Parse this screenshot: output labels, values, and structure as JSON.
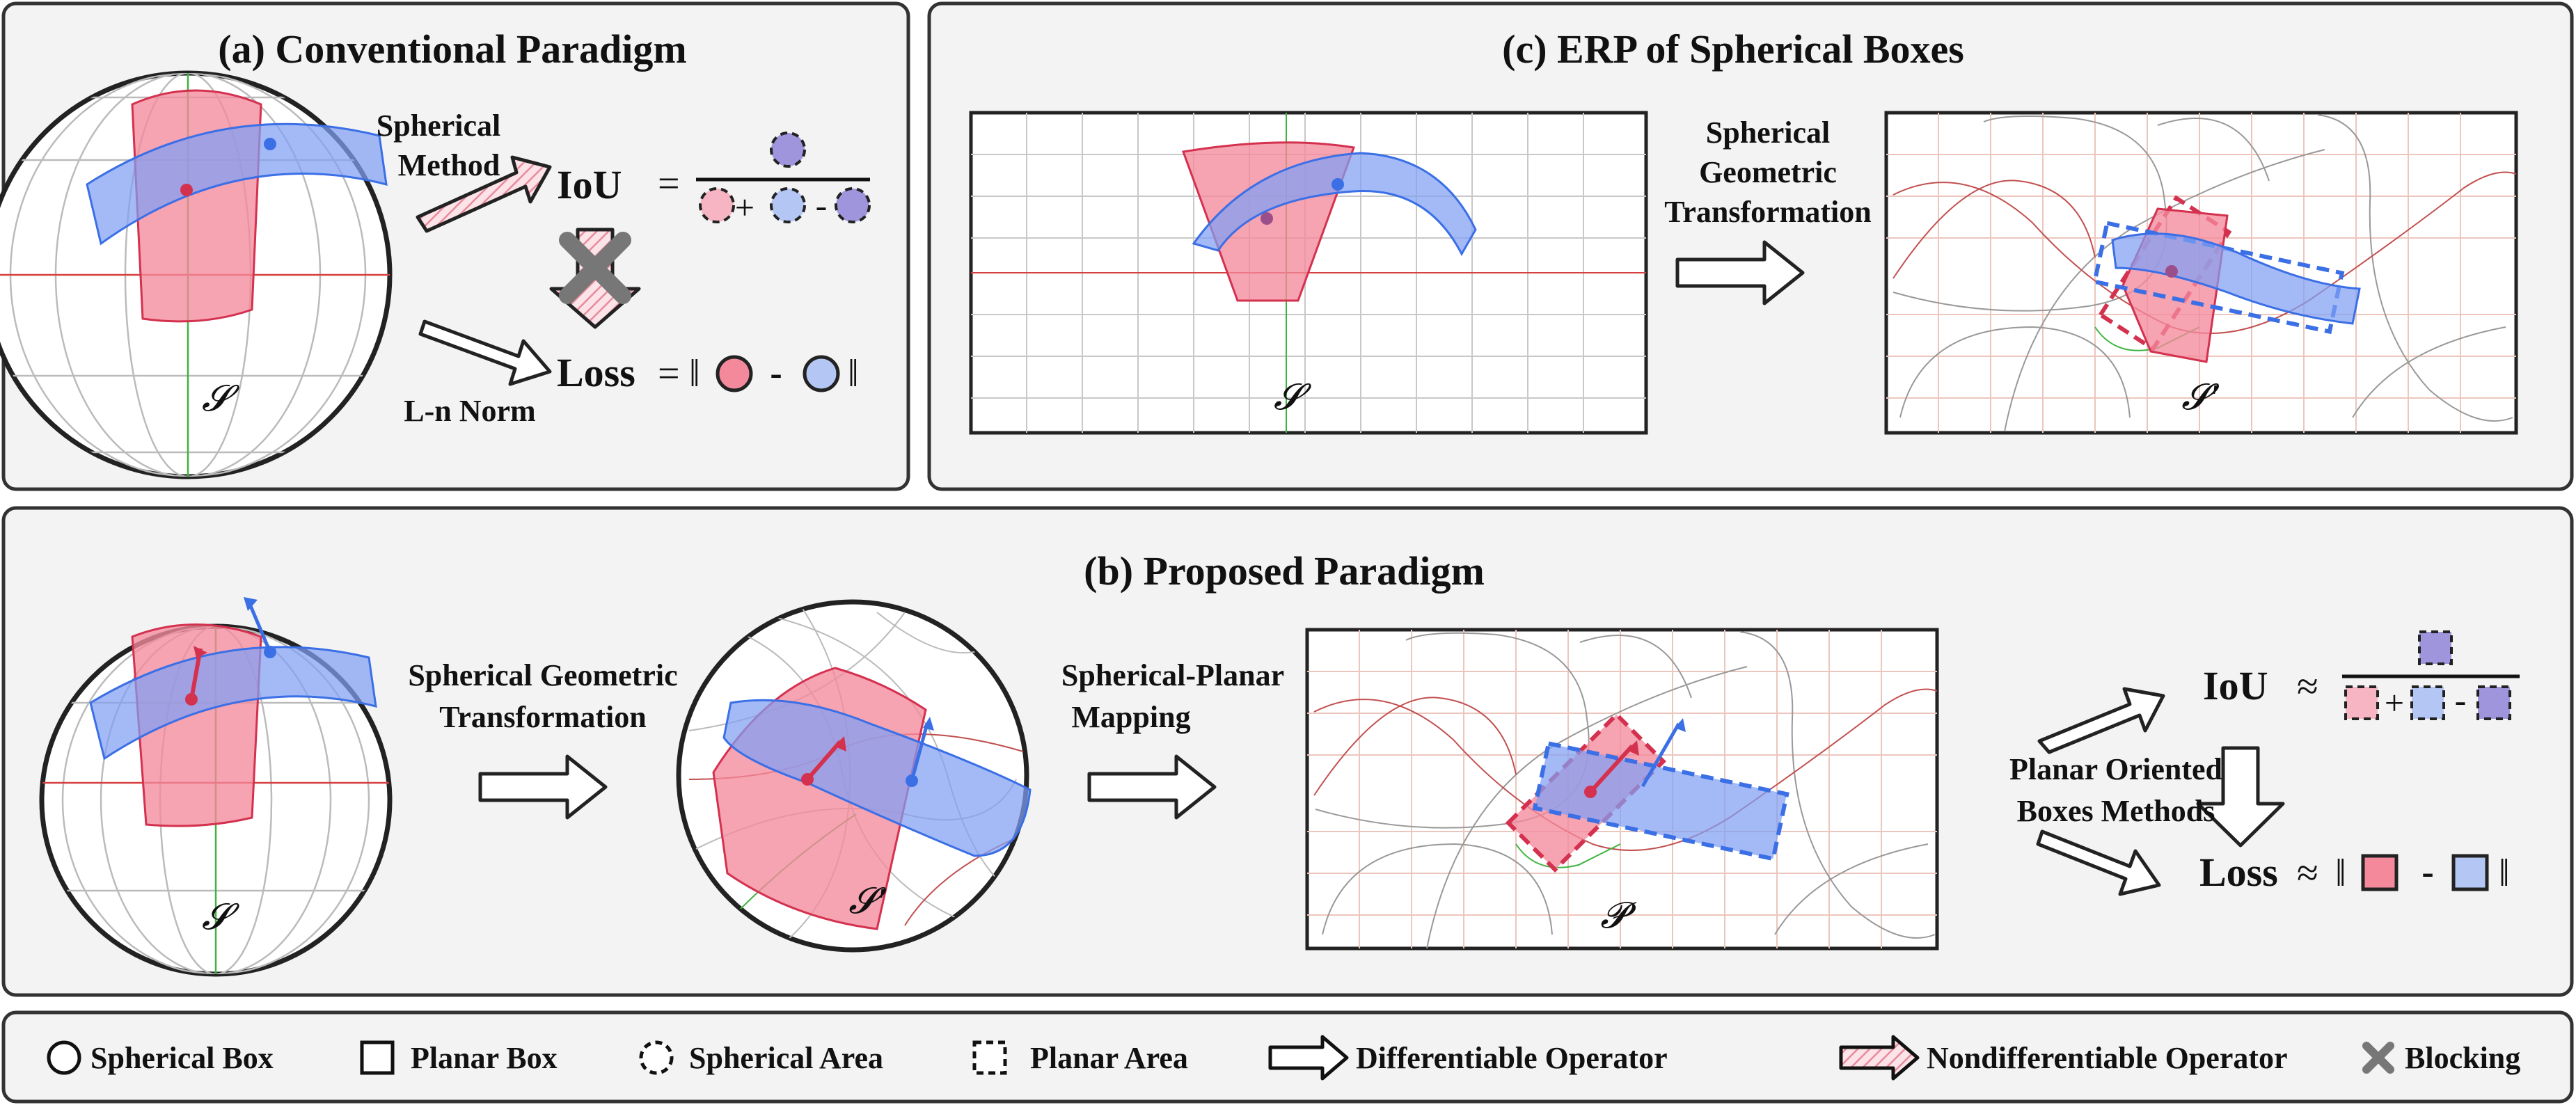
{
  "colors": {
    "panel_fill": "#f3f3f3",
    "panel_stroke": "#333333",
    "red_box": "#f4899c",
    "red_dark": "#d4314f",
    "blue_box": "#7f9ff4",
    "blue_dark": "#3b6fe6",
    "purple_area": "#9f95dd",
    "pink_area": "#f7b5c3",
    "light_blue_area": "#b4c6f4",
    "grid_red": "#e6a0a0",
    "grid_gray": "#bbbbbb",
    "equator_red": "#d64040",
    "meridian_green": "#3fb33f",
    "blocking_gray": "#777777"
  },
  "panel_a": {
    "title": "(a) Conventional Paradigm",
    "sphere_label": "𝓢",
    "spherical_method_line1": "Spherical",
    "spherical_method_line2": "Method",
    "ln_norm_label": "L-n Norm",
    "iou_label": "IoU",
    "iou_eq": "=",
    "plus": "+",
    "minus": "-",
    "loss_label": "Loss",
    "loss_eq": "=",
    "norm_bar": "‖",
    "norm_minus": "-"
  },
  "panel_b": {
    "title": "(b) Proposed Paradigm",
    "sphere_label_1": "𝓢",
    "sphere_label_2": "𝓢′",
    "plane_label": "𝓟",
    "sgt_line1": "Spherical Geometric",
    "sgt_line2": "Transformation",
    "spm_line1": "Spherical-Planar",
    "spm_line2": "Mapping",
    "pobm_line1": "Planar Oriented",
    "pobm_line2": "Boxes Methods",
    "iou_label": "IoU",
    "approx": "≈",
    "plus": "+",
    "minus": "-",
    "loss_label": "Loss",
    "norm_bar": "‖",
    "norm_minus": "-"
  },
  "panel_c": {
    "title": "(c) ERP of Spherical Boxes",
    "erp_label_1": "𝓢",
    "erp_label_2": "𝓢′",
    "sgt_line1": "Spherical",
    "sgt_line2": "Geometric",
    "sgt_line3": "Transformation"
  },
  "legend": {
    "items": [
      {
        "label": "Spherical Box",
        "icon": "solid-circle-icon"
      },
      {
        "label": "Planar Box",
        "icon": "solid-square-icon"
      },
      {
        "label": "Spherical Area",
        "icon": "dashed-circle-icon"
      },
      {
        "label": "Planar Area",
        "icon": "dashed-square-icon"
      },
      {
        "label": "Differentiable Operator",
        "icon": "hollow-arrow-icon"
      },
      {
        "label": "Nondifferentiable Operator",
        "icon": "hatched-arrow-icon"
      },
      {
        "label": "Blocking",
        "icon": "cross-icon"
      }
    ]
  }
}
